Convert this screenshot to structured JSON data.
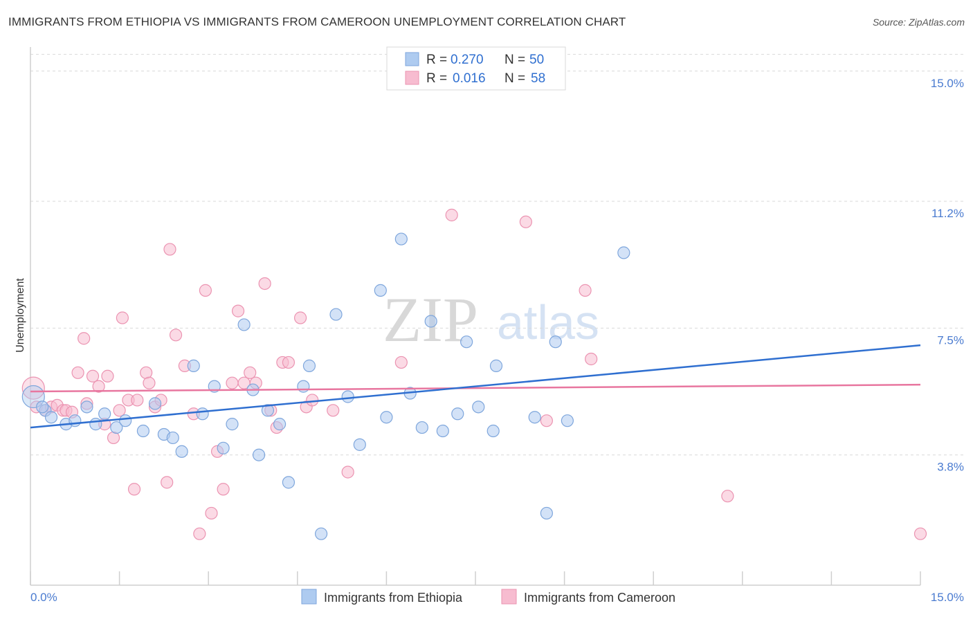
{
  "header": {
    "title": "IMMIGRANTS FROM ETHIOPIA VS IMMIGRANTS FROM CAMEROON UNEMPLOYMENT CORRELATION CHART",
    "source": "Source: ZipAtlas.com"
  },
  "watermark": {
    "zip": "ZIP",
    "atlas": "atlas"
  },
  "legend_top": {
    "rows": [
      {
        "r_label": "R = ",
        "r_value": "0.270",
        "n_label": "N = ",
        "n_value": "50"
      },
      {
        "r_label": "R = ",
        "r_value": "0.016",
        "n_label": "N = ",
        "n_value": "58"
      }
    ]
  },
  "legend_bottom": {
    "items": [
      "Immigrants from Ethiopia",
      "Immigrants from Cameroon"
    ]
  },
  "colors": {
    "ethiopia_fill": "#aecbf0",
    "ethiopia_stroke": "#7ea6dc",
    "ethiopia_line": "#2f6fd0",
    "cameroon_fill": "#f7bcd0",
    "cameroon_stroke": "#eb93b1",
    "cameroon_line": "#e8769f",
    "tick_text": "#4a7bd0",
    "grid": "#d9d9d9"
  },
  "chart_data": {
    "type": "scatter",
    "ylabel": "Unemployment",
    "xlim": [
      0,
      15
    ],
    "ylim": [
      0,
      15.5
    ],
    "x_tick_labels": [
      "0.0%",
      "15.0%"
    ],
    "y_ticks": [
      3.8,
      7.5,
      11.2,
      15.0
    ],
    "y_tick_labels": [
      "3.8%",
      "7.5%",
      "11.2%",
      "15.0%"
    ],
    "grid": "horizontal dashed",
    "legend_position": "top-center",
    "series": [
      {
        "name": "Immigrants from Ethiopia",
        "r": 0.27,
        "n": 50,
        "trend": [
          [
            0,
            4.6
          ],
          [
            15,
            7.0
          ]
        ],
        "points": [
          [
            0.05,
            5.5
          ],
          [
            0.25,
            5.1
          ],
          [
            0.35,
            4.9
          ],
          [
            0.6,
            4.7
          ],
          [
            0.75,
            4.8
          ],
          [
            0.95,
            5.2
          ],
          [
            1.1,
            4.7
          ],
          [
            1.25,
            5.0
          ],
          [
            1.45,
            4.6
          ],
          [
            1.6,
            4.8
          ],
          [
            1.9,
            4.5
          ],
          [
            2.1,
            5.3
          ],
          [
            2.25,
            4.4
          ],
          [
            2.4,
            4.3
          ],
          [
            2.55,
            3.9
          ],
          [
            2.75,
            6.4
          ],
          [
            2.9,
            5.0
          ],
          [
            3.1,
            5.8
          ],
          [
            3.25,
            4.0
          ],
          [
            3.4,
            4.7
          ],
          [
            3.6,
            7.6
          ],
          [
            3.75,
            5.7
          ],
          [
            3.85,
            3.8
          ],
          [
            4.0,
            5.1
          ],
          [
            4.2,
            4.7
          ],
          [
            4.35,
            3.0
          ],
          [
            4.6,
            5.8
          ],
          [
            4.7,
            6.4
          ],
          [
            4.9,
            1.5
          ],
          [
            5.15,
            7.9
          ],
          [
            5.35,
            5.5
          ],
          [
            5.55,
            4.1
          ],
          [
            5.9,
            8.6
          ],
          [
            6.0,
            4.9
          ],
          [
            6.25,
            10.1
          ],
          [
            6.4,
            5.6
          ],
          [
            6.6,
            4.6
          ],
          [
            6.75,
            7.7
          ],
          [
            6.95,
            4.5
          ],
          [
            7.2,
            5.0
          ],
          [
            7.35,
            7.1
          ],
          [
            7.55,
            5.2
          ],
          [
            7.8,
            4.5
          ],
          [
            7.85,
            6.4
          ],
          [
            8.5,
            4.9
          ],
          [
            8.7,
            2.1
          ],
          [
            8.85,
            7.1
          ],
          [
            9.05,
            4.8
          ],
          [
            10.0,
            9.7
          ],
          [
            0.2,
            5.2
          ]
        ]
      },
      {
        "name": "Immigrants from Cameroon",
        "r": 0.016,
        "n": 58,
        "trend": [
          [
            0,
            5.65
          ],
          [
            15,
            5.85
          ]
        ],
        "points": [
          [
            0.05,
            5.75
          ],
          [
            0.1,
            5.2
          ],
          [
            0.25,
            5.1
          ],
          [
            0.35,
            5.2
          ],
          [
            0.45,
            5.25
          ],
          [
            0.55,
            5.1
          ],
          [
            0.6,
            5.1
          ],
          [
            0.7,
            5.05
          ],
          [
            0.8,
            6.2
          ],
          [
            0.9,
            7.2
          ],
          [
            0.95,
            5.3
          ],
          [
            1.05,
            6.1
          ],
          [
            1.15,
            5.8
          ],
          [
            1.25,
            4.7
          ],
          [
            1.3,
            6.1
          ],
          [
            1.4,
            4.3
          ],
          [
            1.5,
            5.1
          ],
          [
            1.55,
            7.8
          ],
          [
            1.65,
            5.4
          ],
          [
            1.75,
            2.8
          ],
          [
            1.8,
            5.4
          ],
          [
            1.95,
            6.2
          ],
          [
            2.0,
            5.9
          ],
          [
            2.1,
            5.2
          ],
          [
            2.2,
            5.4
          ],
          [
            2.3,
            3.0
          ],
          [
            2.35,
            9.8
          ],
          [
            2.45,
            7.3
          ],
          [
            2.6,
            6.4
          ],
          [
            2.75,
            5.0
          ],
          [
            2.85,
            1.5
          ],
          [
            2.95,
            8.6
          ],
          [
            3.05,
            2.1
          ],
          [
            3.15,
            3.9
          ],
          [
            3.25,
            2.8
          ],
          [
            3.4,
            5.9
          ],
          [
            3.5,
            8.0
          ],
          [
            3.6,
            5.9
          ],
          [
            3.7,
            6.2
          ],
          [
            3.8,
            5.9
          ],
          [
            3.95,
            8.8
          ],
          [
            4.05,
            5.1
          ],
          [
            4.15,
            4.6
          ],
          [
            4.25,
            6.5
          ],
          [
            4.35,
            6.5
          ],
          [
            4.55,
            7.8
          ],
          [
            4.65,
            5.2
          ],
          [
            4.75,
            5.4
          ],
          [
            5.1,
            5.1
          ],
          [
            5.35,
            3.3
          ],
          [
            6.25,
            6.5
          ],
          [
            7.1,
            10.8
          ],
          [
            8.35,
            10.6
          ],
          [
            8.7,
            4.8
          ],
          [
            9.35,
            8.6
          ],
          [
            9.45,
            6.6
          ],
          [
            11.75,
            2.6
          ],
          [
            15.0,
            1.5
          ]
        ]
      }
    ]
  }
}
